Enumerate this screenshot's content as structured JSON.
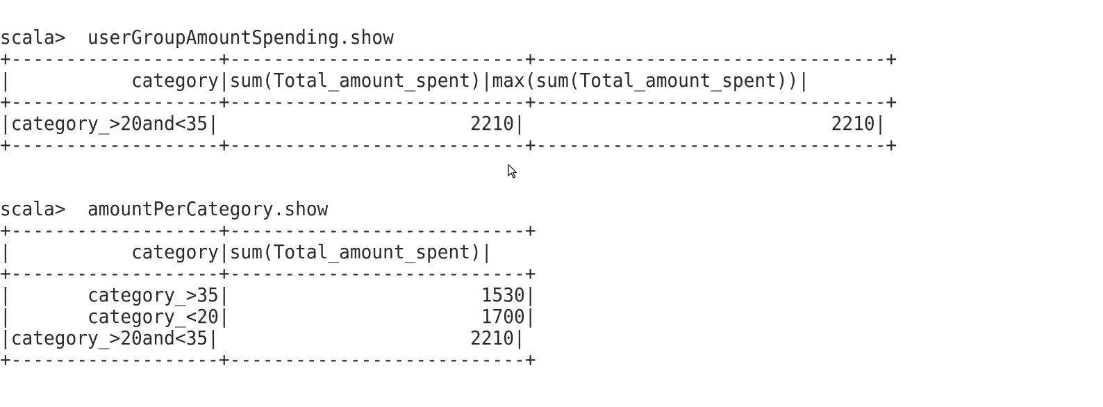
{
  "terminal": {
    "background": "#ffffff",
    "text_color": "#2a2a2a",
    "lines": [
      "scala>  userGroupAmountSpending.show",
      "+-------------------+---------------------------+--------------------------------+",
      "|           category|sum(Total_amount_spent)|max(sum(Total_amount_spent))|",
      "+-------------------+---------------------------+--------------------------------+",
      "|category_>20and<35|                       2210|                            2210|",
      "+-------------------+---------------------------+--------------------------------+",
      "scala>  amountPerCategory.show",
      "+-------------------+---------------------------+",
      "|           category|sum(Total_amount_spent)|",
      "+-------------------+---------------------------+",
      "|       category_>35|                       1530|",
      "|       category_<20|                       1700|",
      "|category_>20and<35|                       2210|",
      "+-------------------+---------------------------+"
    ]
  },
  "cursor": {
    "icon": "mouse-pointer-icon"
  }
}
